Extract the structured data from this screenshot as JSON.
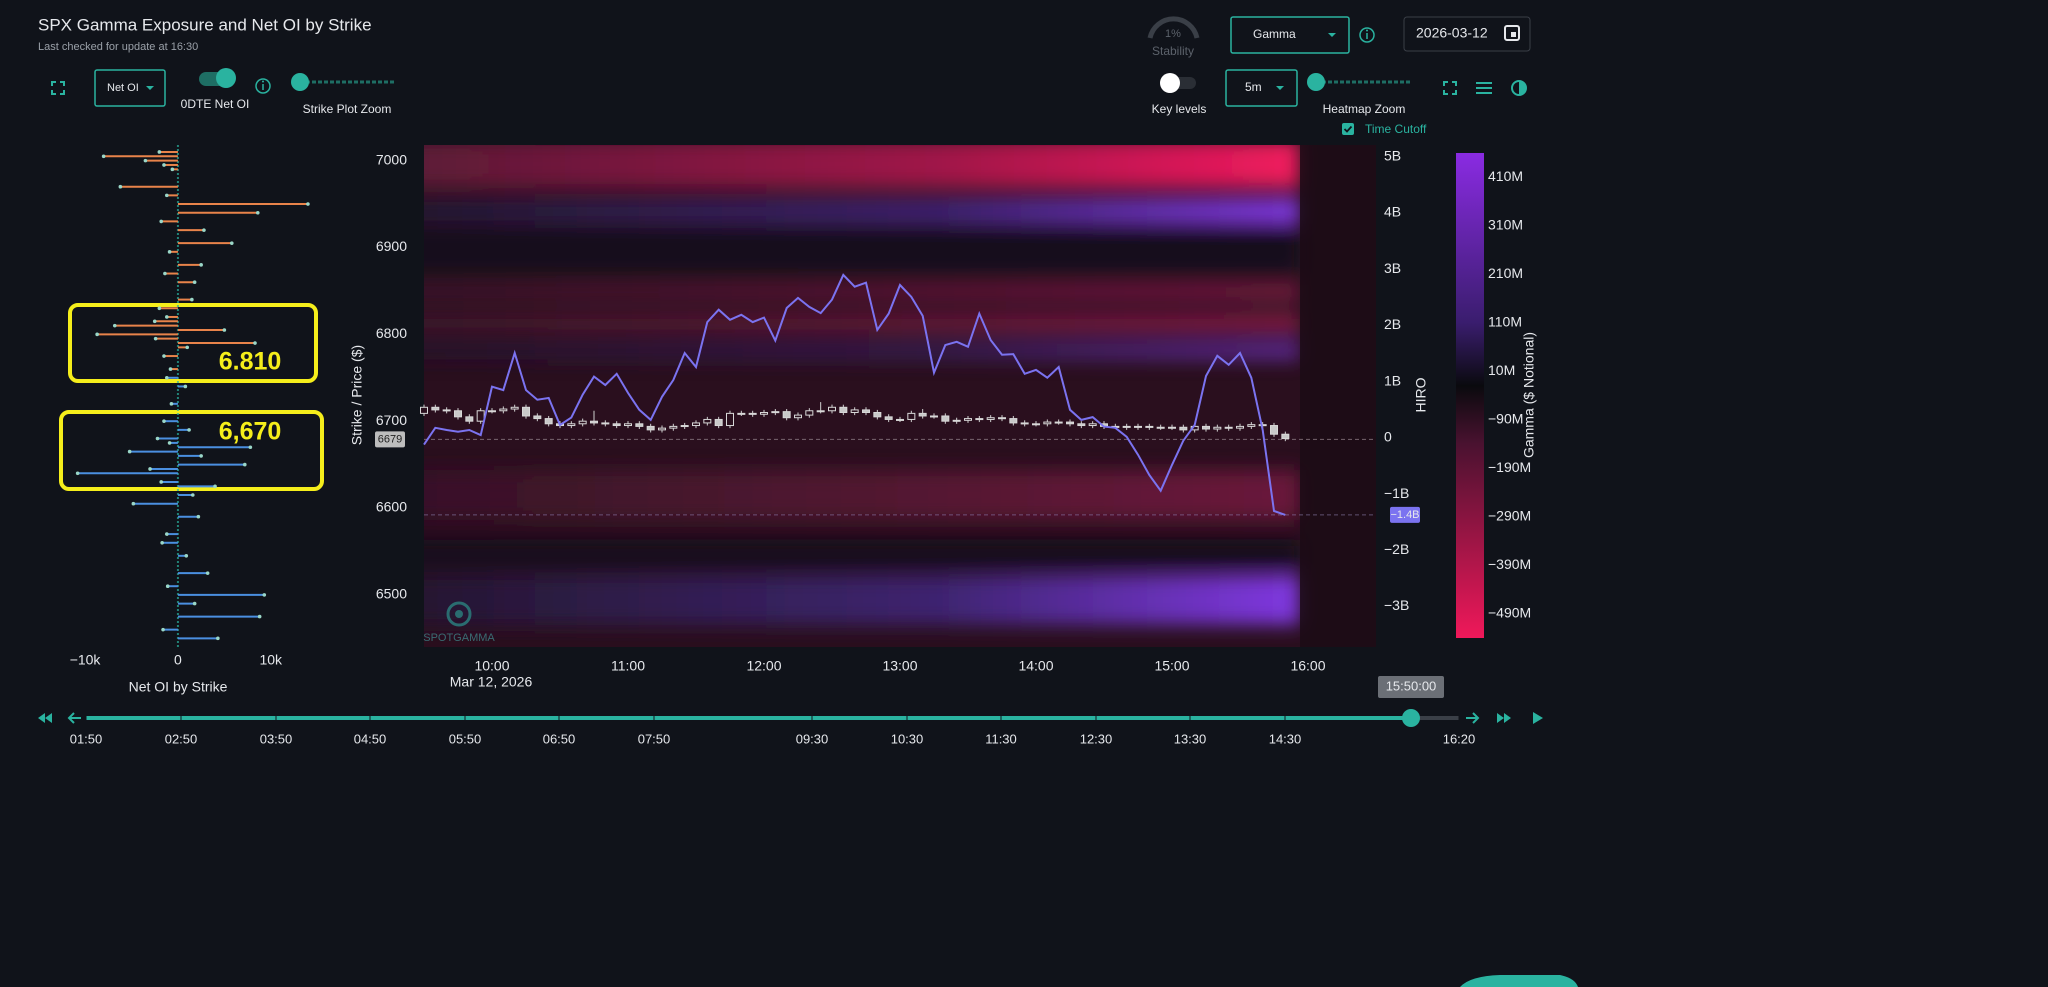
{
  "header": {
    "title": "SPX Gamma Exposure and Net OI by Strike",
    "subtitle": "Last checked for update at 16:30"
  },
  "controls": {
    "net_oi_select": "Net OI",
    "odte_label": "0DTE Net OI",
    "strike_zoom_label": "Strike Plot Zoom",
    "stability_value": "1%",
    "stability_label": "Stability",
    "gamma_select": "Gamma",
    "date": "2026-03-12",
    "key_levels_label": "Key levels",
    "interval_select": "5m",
    "heatmap_zoom_label": "Heatmap Zoom",
    "time_cutoff_label": "Time Cutoff"
  },
  "annotations": [
    {
      "label": "6.810"
    },
    {
      "label": "6,670"
    }
  ],
  "strike_chart": {
    "type": "bar",
    "xlabel": "Net OI by Strike",
    "xlim": [
      -12700,
      15300
    ],
    "xticks": [
      {
        "value": -10000,
        "label": "−10k"
      },
      0,
      {
        "value": 10000,
        "label": "10k"
      }
    ],
    "ylim": [
      6440,
      7018
    ],
    "series": [
      {
        "color": "#e8834a",
        "strikes": [
          7010,
          7005,
          7000,
          6995,
          6990,
          6970,
          6960,
          6950,
          6940,
          6930,
          6920,
          6905,
          6895,
          6880,
          6870,
          6860,
          6840,
          6830,
          6820,
          6815,
          6810,
          6805,
          6800,
          6795,
          6790,
          6785,
          6775,
          6760
        ],
        "values": [
          -2000,
          -8000,
          -3500,
          -1500,
          -600,
          -6200,
          -1200,
          14000,
          8600,
          -1800,
          2800,
          5800,
          -900,
          2500,
          -1400,
          1800,
          1500,
          -2000,
          -1200,
          -2500,
          -6800,
          5000,
          -8700,
          -2400,
          8300,
          1000,
          -1500,
          -800
        ]
      },
      {
        "color": "#4a8fe0",
        "strikes": [
          6750,
          6740,
          6720,
          6700,
          6690,
          6680,
          6675,
          6670,
          6665,
          6660,
          6650,
          6645,
          6640,
          6630,
          6625,
          6615,
          6605,
          6590,
          6570,
          6560,
          6545,
          6525,
          6510,
          6500,
          6490,
          6475,
          6460,
          6450
        ],
        "values": [
          -1200,
          800,
          -700,
          -1500,
          1200,
          -2200,
          -900,
          7800,
          -5200,
          2500,
          7200,
          -3000,
          -10800,
          -1800,
          4000,
          1600,
          -4800,
          2200,
          -1200,
          -1700,
          900,
          3200,
          -1100,
          9300,
          1800,
          8800,
          -1600,
          4300
        ]
      }
    ]
  },
  "main_chart": {
    "type": "candlestick",
    "ylabel": "Strike / Price ($)",
    "y2label": "HIRO",
    "date_label": "Mar 12, 2026",
    "watermark": "SPOTGAMMA",
    "x": [
      "09:30",
      "09:35",
      "09:40",
      "09:45",
      "09:50",
      "09:55",
      "10:00",
      "10:05",
      "10:10",
      "10:15",
      "10:20",
      "10:25",
      "10:30",
      "10:35",
      "10:40",
      "10:45",
      "10:50",
      "10:55",
      "11:00",
      "11:05",
      "11:10",
      "11:15",
      "11:20",
      "11:25",
      "11:30",
      "11:35",
      "11:40",
      "11:45",
      "11:50",
      "11:55",
      "12:00",
      "12:05",
      "12:10",
      "12:15",
      "12:20",
      "12:25",
      "12:30",
      "12:35",
      "12:40",
      "12:45",
      "12:50",
      "12:55",
      "13:00",
      "13:05",
      "13:10",
      "13:15",
      "13:20",
      "13:25",
      "13:30",
      "13:35",
      "13:40",
      "13:45",
      "13:50",
      "13:55",
      "14:00",
      "14:05",
      "14:10",
      "14:15",
      "14:20",
      "14:25",
      "14:30",
      "14:35",
      "14:40",
      "14:45",
      "14:50",
      "14:55",
      "15:00",
      "15:05",
      "15:10",
      "15:15",
      "15:20",
      "15:25",
      "15:30",
      "15:35",
      "15:40",
      "15:45",
      "15:50"
    ],
    "ohlc": [
      [
        6709,
        6719,
        6706,
        6716
      ],
      [
        6716,
        6719,
        6710,
        6713
      ],
      [
        6713,
        6716,
        6709,
        6712
      ],
      [
        6712,
        6715,
        6702,
        6705
      ],
      [
        6705,
        6708,
        6697,
        6700
      ],
      [
        6700,
        6715,
        6697,
        6712
      ],
      [
        6712,
        6715,
        6709,
        6712
      ],
      [
        6712,
        6717,
        6709,
        6714
      ],
      [
        6714,
        6719,
        6711,
        6716
      ],
      [
        6716,
        6719,
        6703,
        6706
      ],
      [
        6706,
        6709,
        6700,
        6703
      ],
      [
        6703,
        6706,
        6694,
        6697
      ],
      [
        6697,
        6700,
        6692,
        6695
      ],
      [
        6695,
        6700,
        6692,
        6697
      ],
      [
        6697,
        6703,
        6694,
        6700
      ],
      [
        6700,
        6712,
        6695,
        6698
      ],
      [
        6698,
        6701,
        6694,
        6697
      ],
      [
        6697,
        6700,
        6692,
        6695
      ],
      [
        6695,
        6700,
        6692,
        6697
      ],
      [
        6697,
        6700,
        6691,
        6694
      ],
      [
        6694,
        6697,
        6687,
        6690
      ],
      [
        6690,
        6695,
        6687,
        6692
      ],
      [
        6692,
        6697,
        6689,
        6694
      ],
      [
        6694,
        6698,
        6691,
        6695
      ],
      [
        6695,
        6701,
        6692,
        6698
      ],
      [
        6698,
        6705,
        6695,
        6702
      ],
      [
        6702,
        6705,
        6692,
        6695
      ],
      [
        6695,
        6712,
        6692,
        6709
      ],
      [
        6709,
        6712,
        6706,
        6709
      ],
      [
        6709,
        6712,
        6705,
        6708
      ],
      [
        6708,
        6713,
        6705,
        6710
      ],
      [
        6710,
        6714,
        6707,
        6711
      ],
      [
        6711,
        6714,
        6701,
        6704
      ],
      [
        6704,
        6710,
        6701,
        6707
      ],
      [
        6707,
        6715,
        6704,
        6712
      ],
      [
        6712,
        6722,
        6709,
        6712
      ],
      [
        6712,
        6719,
        6709,
        6716
      ],
      [
        6716,
        6719,
        6707,
        6710
      ],
      [
        6710,
        6716,
        6707,
        6713
      ],
      [
        6713,
        6716,
        6707,
        6710
      ],
      [
        6710,
        6713,
        6702,
        6705
      ],
      [
        6705,
        6708,
        6699,
        6702
      ],
      [
        6702,
        6705,
        6699,
        6702
      ],
      [
        6702,
        6712,
        6699,
        6709
      ],
      [
        6709,
        6714,
        6703,
        6706
      ],
      [
        6706,
        6709,
        6703,
        6706
      ],
      [
        6706,
        6709,
        6697,
        6700
      ],
      [
        6700,
        6704,
        6697,
        6701
      ],
      [
        6701,
        6706,
        6698,
        6703
      ],
      [
        6703,
        6706,
        6699,
        6702
      ],
      [
        6702,
        6707,
        6699,
        6704
      ],
      [
        6704,
        6707,
        6700,
        6703
      ],
      [
        6703,
        6706,
        6695,
        6698
      ],
      [
        6698,
        6701,
        6694,
        6697
      ],
      [
        6697,
        6700,
        6694,
        6697
      ],
      [
        6697,
        6702,
        6694,
        6699
      ],
      [
        6699,
        6702,
        6696,
        6699
      ],
      [
        6699,
        6702,
        6694,
        6697
      ],
      [
        6697,
        6700,
        6692,
        6695
      ],
      [
        6695,
        6700,
        6692,
        6697
      ],
      [
        6697,
        6700,
        6691,
        6694
      ],
      [
        6694,
        6697,
        6691,
        6694
      ],
      [
        6694,
        6697,
        6690,
        6693
      ],
      [
        6693,
        6697,
        6690,
        6694
      ],
      [
        6694,
        6697,
        6690,
        6693
      ],
      [
        6693,
        6696,
        6690,
        6693
      ],
      [
        6693,
        6696,
        6690,
        6693
      ],
      [
        6693,
        6696,
        6687,
        6690
      ],
      [
        6690,
        6697,
        6687,
        6694
      ],
      [
        6694,
        6697,
        6688,
        6691
      ],
      [
        6691,
        6696,
        6688,
        6693
      ],
      [
        6693,
        6696,
        6689,
        6692
      ],
      [
        6692,
        6697,
        6689,
        6694
      ],
      [
        6694,
        6699,
        6691,
        6696
      ],
      [
        6696,
        6699,
        6692,
        6695
      ],
      [
        6695,
        6698,
        6682,
        6685
      ],
      [
        6685,
        6688,
        6677,
        6680
      ]
    ],
    "series": [
      {
        "color": "#7b73f0",
        "axis": "y2",
        "last_label": "−1.4B",
        "values": [
          -0.12,
          0.18,
          0.14,
          0.11,
          0.14,
          0.05,
          0.91,
          0.85,
          1.51,
          0.85,
          0.68,
          0.71,
          0.23,
          0.36,
          0.77,
          1.09,
          0.94,
          1.14,
          0.8,
          0.5,
          0.32,
          0.73,
          1.03,
          1.51,
          1.26,
          2.06,
          2.28,
          2.1,
          2.19,
          2.06,
          2.14,
          1.73,
          2.31,
          2.49,
          2.33,
          2.22,
          2.46,
          2.9,
          2.69,
          2.76,
          1.92,
          2.21,
          2.72,
          2.51,
          2.17,
          1.16,
          1.65,
          1.71,
          1.62,
          2.21,
          1.74,
          1.48,
          1.49,
          1.14,
          1.21,
          1.07,
          1.26,
          0.5,
          0.32,
          0.37,
          0.2,
          0.18,
          0.02,
          -0.3,
          -0.66,
          -0.94,
          -0.48,
          -0.05,
          0.23,
          1.1,
          1.46,
          1.3,
          1.51,
          1.07,
          0.14,
          -1.3,
          -1.37
        ]
      }
    ],
    "last_price": 6679,
    "xlim": [
      "09:30",
      "16:30"
    ],
    "xticks": [
      "10:00",
      "11:00",
      "12:00",
      "13:00",
      "14:00",
      "15:00",
      "16:00"
    ],
    "ylim": [
      6440,
      7018
    ],
    "yticks": [
      6500,
      6600,
      6700,
      6800,
      6900,
      7000
    ],
    "y2lim": [
      -3.72,
      5.21
    ],
    "y2ticks": [
      {
        "value": -3,
        "label": "−3B"
      },
      {
        "value": -2,
        "label": "−2B"
      },
      {
        "value": -1,
        "label": "−1B"
      },
      0,
      {
        "value": 1,
        "label": "1B"
      },
      {
        "value": 2,
        "label": "2B"
      },
      {
        "value": 3,
        "label": "3B"
      },
      {
        "value": 4,
        "label": "4B"
      },
      {
        "value": 5,
        "label": "5B"
      }
    ]
  },
  "colorbar": {
    "label": "Gamma ($ Notional)",
    "clim": [
      -540,
      460
    ],
    "ticks": [
      {
        "value": 410,
        "label": "410M"
      },
      {
        "value": 310,
        "label": "310M"
      },
      {
        "value": 210,
        "label": "210M"
      },
      {
        "value": 110,
        "label": "110M"
      },
      {
        "value": 10,
        "label": "10M"
      },
      {
        "value": -90,
        "label": "−90M"
      },
      {
        "value": -190,
        "label": "−190M"
      },
      {
        "value": -290,
        "label": "−290M"
      },
      {
        "value": -390,
        "label": "−390M"
      },
      {
        "value": -490,
        "label": "−490M"
      }
    ]
  },
  "timeline": {
    "labels": [
      "01:50",
      "02:50",
      "03:50",
      "04:50",
      "05:50",
      "06:50",
      "07:50",
      "09:30",
      "10:30",
      "11:30",
      "12:30",
      "13:30",
      "14:30",
      "16:20"
    ],
    "current": "15:50:00"
  }
}
